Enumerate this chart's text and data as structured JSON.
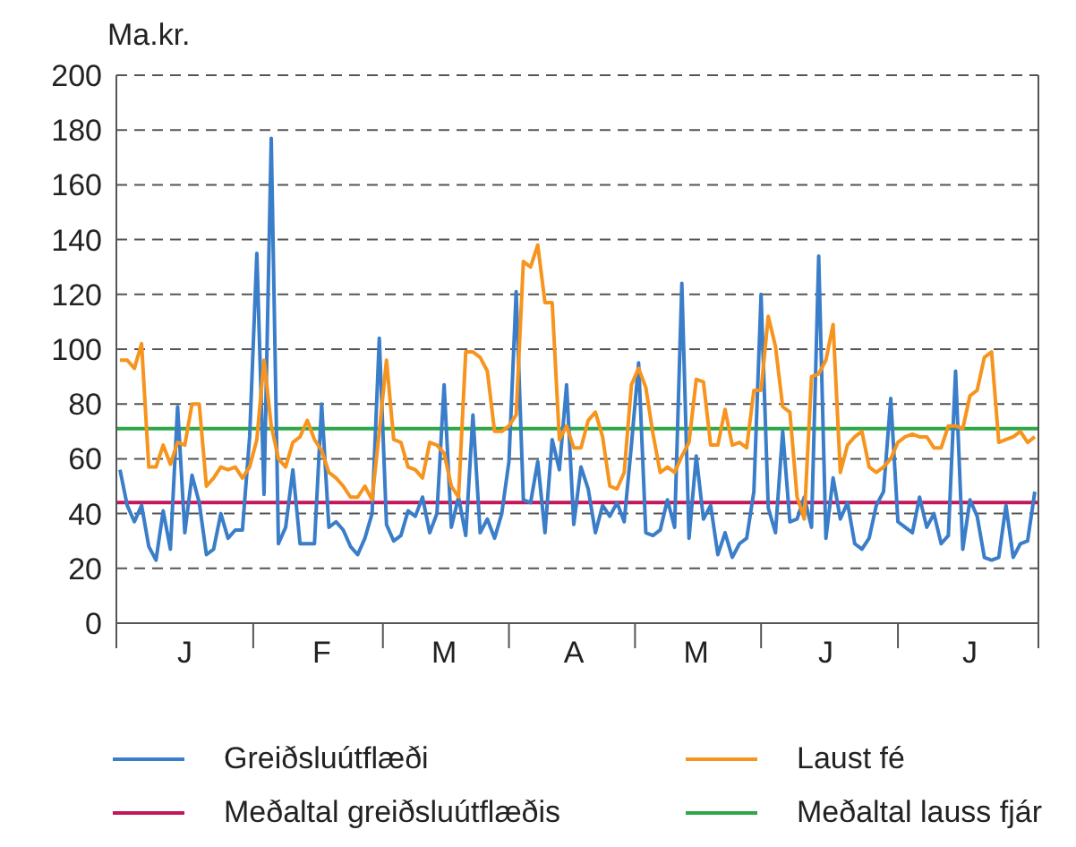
{
  "chart_data": {
    "type": "line",
    "ylabel": "Ma.kr.",
    "categories": [
      null,
      null,
      null,
      null,
      null,
      null,
      null,
      null,
      null,
      "J",
      null,
      null,
      null,
      null,
      null,
      null,
      null,
      null,
      null,
      null,
      null,
      null,
      null,
      null,
      null,
      null,
      null,
      null,
      "F",
      null,
      null,
      null,
      null,
      null,
      null,
      null,
      null,
      null,
      null,
      null,
      null,
      null,
      null,
      null,
      null,
      "M",
      null,
      null,
      null,
      null,
      null,
      null,
      null,
      null,
      null,
      null,
      null,
      null,
      null,
      null,
      null,
      null,
      null,
      "A",
      null,
      null,
      null,
      null,
      null,
      null,
      null,
      null,
      null,
      null,
      null,
      null,
      null,
      null,
      null,
      null,
      "M",
      null,
      null,
      null,
      null,
      null,
      null,
      null,
      null,
      null,
      null,
      null,
      null,
      null,
      null,
      null,
      null,
      null,
      "J",
      null,
      null,
      null,
      null,
      null,
      null,
      null,
      null,
      null,
      null,
      null,
      null,
      null,
      null,
      null,
      null,
      null,
      null,
      null,
      "J",
      null,
      null,
      null,
      null,
      null,
      null,
      null,
      null,
      null
    ],
    "ylim": [
      0,
      200
    ],
    "yticks": [
      0,
      20,
      40,
      60,
      80,
      100,
      120,
      140,
      160,
      180,
      200
    ],
    "grid": "y",
    "legend": "bottom",
    "marker": "none",
    "line_style": "solid",
    "series": [
      {
        "name": "Greiðsluútflæði",
        "color": "#3a7dc9",
        "values": [
          56,
          43,
          37,
          43,
          28,
          23,
          41,
          27,
          79,
          33,
          54,
          44,
          25,
          27,
          40,
          31,
          34,
          34,
          68,
          135,
          47,
          177,
          29,
          35,
          56,
          29,
          29,
          29,
          80,
          35,
          37,
          34,
          28,
          25,
          31,
          40,
          104,
          36,
          30,
          32,
          41,
          39,
          46,
          33,
          40,
          87,
          35,
          46,
          32,
          76,
          33,
          38,
          31,
          40,
          59,
          121,
          45,
          44,
          59,
          33,
          67,
          56,
          87,
          36,
          57,
          49,
          33,
          43,
          39,
          44,
          37,
          65,
          95,
          33,
          32,
          34,
          45,
          35,
          124,
          31,
          61,
          38,
          43,
          25,
          33,
          24,
          29,
          31,
          48,
          120,
          42,
          33,
          70,
          37,
          38,
          46,
          35,
          134,
          31,
          53,
          38,
          44,
          29,
          27,
          31,
          43,
          48,
          82,
          37,
          35,
          33,
          46,
          35,
          40,
          29,
          32,
          92,
          27,
          45,
          39,
          24,
          23,
          24,
          43,
          24,
          29,
          30,
          48
        ]
      },
      {
        "name": "Laust fé",
        "color": "#f7941d",
        "values": [
          96,
          96,
          93,
          102,
          57,
          57,
          65,
          58,
          66,
          65,
          80,
          80,
          50,
          53,
          57,
          56,
          57,
          53,
          57,
          67,
          96,
          72,
          60,
          57,
          66,
          68,
          74,
          67,
          63,
          55,
          53,
          50,
          46,
          46,
          50,
          45,
          70,
          96,
          67,
          66,
          57,
          56,
          53,
          66,
          65,
          62,
          50,
          46,
          99,
          99,
          97,
          92,
          70,
          70,
          72,
          76,
          132,
          130,
          138,
          117,
          117,
          67,
          72,
          64,
          64,
          74,
          77,
          68,
          50,
          49,
          55,
          87,
          93,
          86,
          69,
          55,
          57,
          55,
          61,
          66,
          89,
          88,
          65,
          65,
          78,
          65,
          66,
          64,
          85,
          85,
          112,
          101,
          79,
          77,
          46,
          38,
          90,
          91,
          96,
          109,
          55,
          65,
          68,
          70,
          57,
          55,
          57,
          60,
          66,
          68,
          69,
          68,
          68,
          64,
          64,
          72,
          72,
          71,
          83,
          85,
          97,
          99,
          66,
          67,
          68,
          70,
          66,
          68
        ]
      }
    ],
    "ref_lines": [
      {
        "axis": "y",
        "value": 44,
        "label": "Meðaltal greiðsluútflæðis",
        "color": "#c2185b"
      },
      {
        "axis": "y",
        "value": 71,
        "label": "Meðaltal lauss fjár",
        "color": "#2ca84a"
      }
    ]
  }
}
